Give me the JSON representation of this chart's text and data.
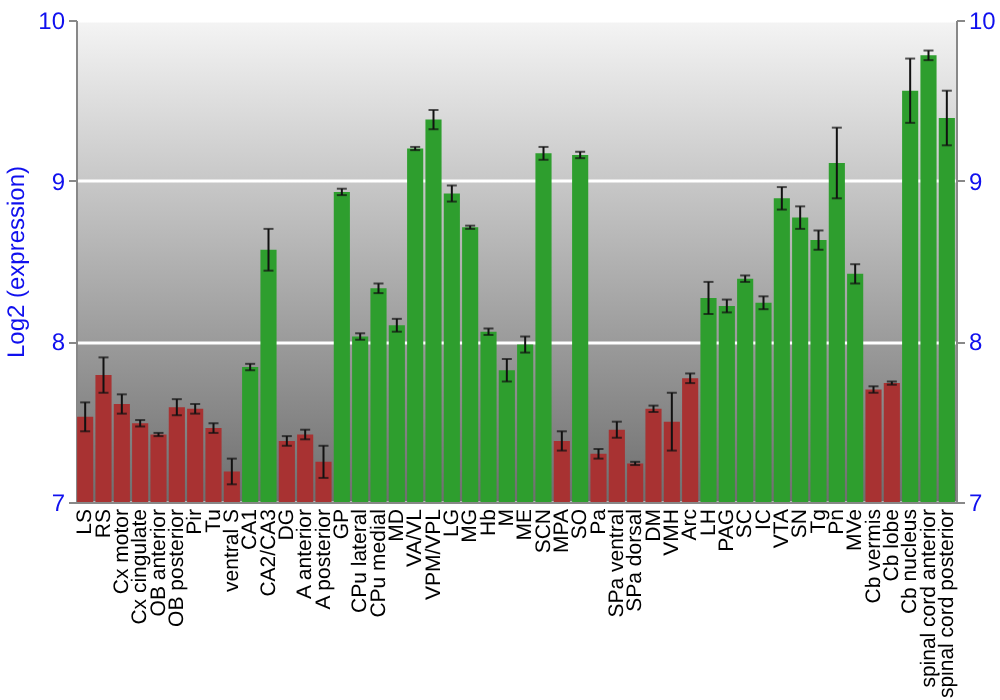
{
  "chart_data": {
    "type": "bar",
    "ylabel": "Log2 (expression)",
    "categories": [
      "LS",
      "RS",
      "Cx motor",
      "Cx cingulate",
      "OB anterior",
      "OB posterior",
      "Pir",
      "Tu",
      "ventral S",
      "CA1",
      "CA2/CA3",
      "DG",
      "A anterior",
      "A posterior",
      "GP",
      "CPu lateral",
      "CPu medial",
      "MD",
      "VA/VL",
      "VPM/VPL",
      "LG",
      "MG",
      "Hb",
      "M",
      "ME",
      "SCN",
      "MPA",
      "SO",
      "Pa",
      "SPa ventral",
      "SPa dorsal",
      "DM",
      "VMH",
      "Arc",
      "LH",
      "PAG",
      "SC",
      "IC",
      "VTA",
      "SN",
      "Tg",
      "Pn",
      "MVe",
      "Cb vermis",
      "Cb lobe",
      "Cb nucleus",
      "spinal cord anterior",
      "spinal cord posterior"
    ],
    "values": [
      7.53,
      7.79,
      7.61,
      7.49,
      7.42,
      7.59,
      7.58,
      7.46,
      7.19,
      7.84,
      8.57,
      7.38,
      7.42,
      7.25,
      8.93,
      8.03,
      8.33,
      8.1,
      9.2,
      9.38,
      8.92,
      8.71,
      8.06,
      7.82,
      7.98,
      9.17,
      7.38,
      9.16,
      7.3,
      7.45,
      7.24,
      7.58,
      7.5,
      7.77,
      8.27,
      8.22,
      8.39,
      8.24,
      8.89,
      8.77,
      8.63,
      9.11,
      8.42,
      7.7,
      7.74,
      9.56,
      9.78,
      9.39
    ],
    "errors": [
      0.09,
      0.11,
      0.06,
      0.02,
      0.01,
      0.05,
      0.03,
      0.03,
      0.08,
      0.02,
      0.13,
      0.03,
      0.03,
      0.1,
      0.02,
      0.02,
      0.03,
      0.04,
      0.01,
      0.06,
      0.05,
      0.01,
      0.02,
      0.07,
      0.05,
      0.04,
      0.06,
      0.02,
      0.03,
      0.05,
      0.01,
      0.02,
      0.18,
      0.03,
      0.1,
      0.04,
      0.02,
      0.04,
      0.07,
      0.07,
      0.06,
      0.22,
      0.06,
      0.02,
      0.01,
      0.2,
      0.03,
      0.17
    ],
    "colors": [
      "#a83232",
      "#a83232",
      "#a83232",
      "#a83232",
      "#a83232",
      "#a83232",
      "#a83232",
      "#a83232",
      "#a83232",
      "#2e9e2e",
      "#2e9e2e",
      "#a83232",
      "#a83232",
      "#a83232",
      "#2e9e2e",
      "#2e9e2e",
      "#2e9e2e",
      "#2e9e2e",
      "#2e9e2e",
      "#2e9e2e",
      "#2e9e2e",
      "#2e9e2e",
      "#2e9e2e",
      "#2e9e2e",
      "#2e9e2e",
      "#2e9e2e",
      "#a83232",
      "#2e9e2e",
      "#a83232",
      "#a83232",
      "#a83232",
      "#a83232",
      "#a83232",
      "#a83232",
      "#2e9e2e",
      "#2e9e2e",
      "#2e9e2e",
      "#2e9e2e",
      "#2e9e2e",
      "#2e9e2e",
      "#2e9e2e",
      "#2e9e2e",
      "#2e9e2e",
      "#a83232",
      "#a83232",
      "#2e9e2e",
      "#2e9e2e",
      "#2e9e2e"
    ],
    "ylim": [
      7,
      10
    ],
    "yticks": [
      7,
      8,
      9,
      10
    ],
    "y2lim": [
      7,
      10
    ],
    "y2ticks": [
      7,
      8,
      9,
      10
    ],
    "grid": "y"
  }
}
